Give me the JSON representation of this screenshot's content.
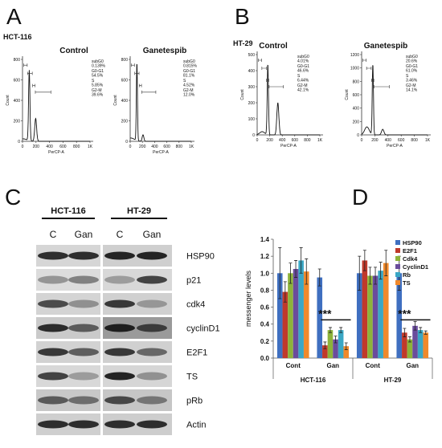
{
  "panels": {
    "A": {
      "letter": "A",
      "cell_line": "HCT-116",
      "plots": [
        {
          "title": "Control",
          "ylabel": "Count",
          "xlabel": "PerCP-A",
          "ylim": [
            0,
            800
          ],
          "yticks": [
            0,
            200,
            400,
            600,
            800
          ],
          "xlim": [
            0,
            1000
          ],
          "xticks": [
            0,
            200,
            400,
            600,
            800,
            {
              "value": 1000,
              "label": "1K"
            }
          ],
          "stats": [
            {
              "label": "subG0",
              "value": "0.139%"
            },
            {
              "label": "G0-G1",
              "value": "54.5%"
            },
            {
              "label": "S",
              "value": "5.85%"
            },
            {
              "label": "G2-M",
              "value": "39.6%"
            }
          ]
        },
        {
          "title": "Ganetespib",
          "ylabel": "Count",
          "xlabel": "PerCP-A",
          "ylim": [
            0,
            800
          ],
          "yticks": [
            0,
            200,
            400,
            600,
            800
          ],
          "xlim": [
            0,
            1000
          ],
          "xticks": [
            0,
            200,
            400,
            600,
            800,
            {
              "value": 1000,
              "label": "1K"
            }
          ],
          "stats": [
            {
              "label": "subG0",
              "value": "0.815%"
            },
            {
              "label": "G0-G1",
              "value": "81.1%"
            },
            {
              "label": "S",
              "value": "4.52%"
            },
            {
              "label": "G2-M",
              "value": "12.0%"
            }
          ]
        }
      ]
    },
    "B": {
      "letter": "B",
      "cell_line": "HT-29",
      "plots": [
        {
          "title": "Control",
          "ylabel": "Count",
          "xlabel": "PerCP-A",
          "ylim": [
            0,
            500
          ],
          "yticks": [
            0,
            100,
            200,
            300,
            400,
            500
          ],
          "xlim": [
            0,
            1000
          ],
          "xticks": [
            0,
            200,
            400,
            600,
            800,
            {
              "value": 1000,
              "label": "1K"
            }
          ],
          "stats": [
            {
              "label": "subG0",
              "value": "4.01%"
            },
            {
              "label": "G0-G1",
              "value": "46.6%"
            },
            {
              "label": "S",
              "value": "6.44%"
            },
            {
              "label": "G2-M",
              "value": "42.1%"
            }
          ]
        },
        {
          "title": "Ganetespib",
          "ylabel": "Count",
          "xlabel": "PerCP-A",
          "ylim": [
            0,
            1200
          ],
          "yticks": [
            0,
            200,
            400,
            600,
            800,
            1000,
            1200
          ],
          "xlim": [
            0,
            1000
          ],
          "xticks": [
            0,
            200,
            400,
            600,
            800,
            {
              "value": 1000,
              "label": "1K"
            }
          ],
          "stats": [
            {
              "label": "subG0",
              "value": "20.6%"
            },
            {
              "label": "G0-G1",
              "value": "61.0%"
            },
            {
              "label": "S",
              "value": "3.46%"
            },
            {
              "label": "G2-M",
              "value": "14.1%"
            }
          ]
        }
      ]
    },
    "C": {
      "letter": "C",
      "cell_lines": [
        "HCT-116",
        "HT-29"
      ],
      "lanes": [
        "C",
        "Gan",
        "C",
        "Gan"
      ],
      "proteins": [
        "HSP90",
        "p21",
        "cdk4",
        "cyclinD1",
        "E2F1",
        "TS",
        "pRb",
        "Actin"
      ]
    }
  },
  "chart_data": {
    "type": "bar",
    "letter": "D",
    "ylabel": "messenger levels",
    "categories": [
      "Cont",
      "Gan",
      "Cont",
      "Gan"
    ],
    "groups": [
      "HCT-116",
      "HT-29"
    ],
    "ylim": [
      0,
      1.4
    ],
    "yticks": [
      {
        "value": 0,
        "label": "0.0"
      },
      0.2,
      0.4,
      0.6,
      0.8,
      {
        "value": 1,
        "label": "1.0"
      },
      1.2,
      1.4
    ],
    "annotations": [
      "***",
      "***"
    ],
    "series": [
      {
        "name": "HSP90",
        "color": "#3f6fc0",
        "values": [
          1.0,
          0.95,
          1.0,
          1.0
        ],
        "errors": [
          0.3,
          0.1,
          0.2,
          0.2
        ]
      },
      {
        "name": "E2F1",
        "color": "#c0392b",
        "values": [
          0.78,
          0.15,
          1.15,
          0.3
        ],
        "errors": [
          0.12,
          0.04,
          0.12,
          0.05
        ]
      },
      {
        "name": "Cdk4",
        "color": "#8db33a",
        "values": [
          1.0,
          0.33,
          0.97,
          0.22
        ],
        "errors": [
          0.12,
          0.03,
          0.1,
          0.03
        ]
      },
      {
        "name": "CyclinD1",
        "color": "#6a4c9c",
        "values": [
          1.05,
          0.22,
          0.97,
          0.38
        ],
        "errors": [
          0.1,
          0.04,
          0.1,
          0.05
        ]
      },
      {
        "name": "Rb",
        "color": "#3aa7c5",
        "values": [
          1.15,
          0.33,
          1.03,
          0.33
        ],
        "errors": [
          0.15,
          0.03,
          0.1,
          0.03
        ]
      },
      {
        "name": "TS",
        "color": "#f0892b",
        "values": [
          1.02,
          0.14,
          1.12,
          0.3
        ],
        "errors": [
          0.15,
          0.04,
          0.15,
          0.02
        ]
      }
    ]
  }
}
